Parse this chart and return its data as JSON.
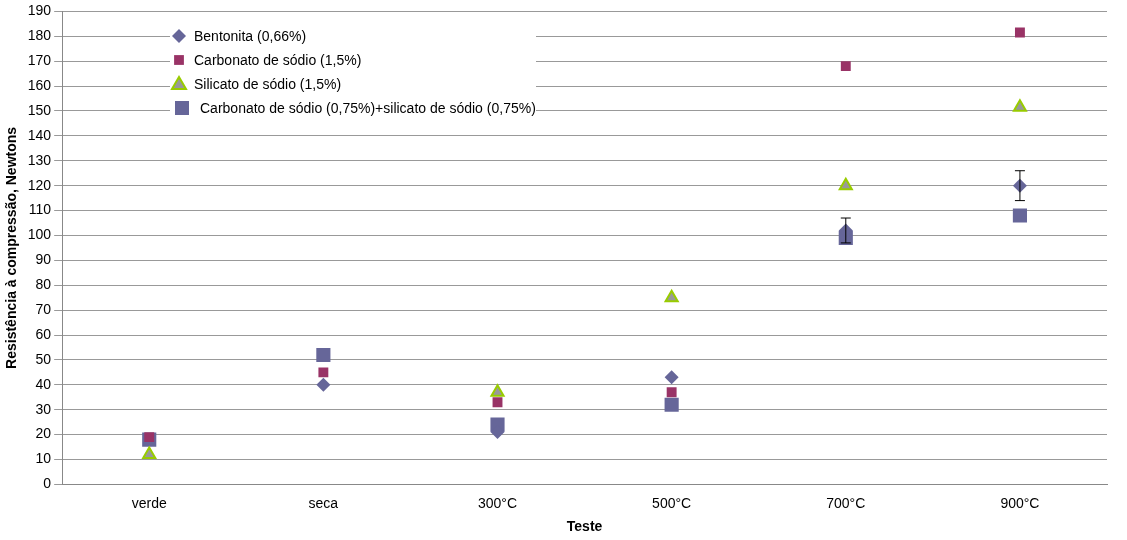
{
  "chart_data": {
    "type": "scatter",
    "xlabel": "Teste",
    "ylabel": "Resistência à compressão, Newtons",
    "categories": [
      "verde",
      "seca",
      "300°C",
      "500°C",
      "700°C",
      "900°C"
    ],
    "series": [
      {
        "name": "Bentonita (0,66%)",
        "color": "#666699",
        "marker": "diamond",
        "values": [
          null,
          40,
          21,
          43,
          102,
          120
        ],
        "errors": [
          null,
          null,
          null,
          null,
          5,
          6
        ]
      },
      {
        "name": "Carbonato de sódio (1,5%)",
        "color": "#993366",
        "marker": "square",
        "values": [
          19,
          45,
          33,
          37,
          168,
          181.5
        ]
      },
      {
        "name": "Silicato de sódio (1,5%)",
        "color": "#999999",
        "marker": "triangle",
        "values": [
          12,
          null,
          37,
          75,
          120,
          151.5
        ]
      },
      {
        "name": "Carbonato de sódio (0,75%)+silicato de sódio (0,75%)",
        "color": "#666699",
        "marker": "square",
        "values": [
          18,
          52,
          24,
          32,
          99,
          108
        ]
      }
    ],
    "ylim": [
      0,
      190
    ],
    "yticks": [
      0,
      10,
      20,
      30,
      40,
      50,
      60,
      70,
      80,
      90,
      100,
      110,
      120,
      130,
      140,
      150,
      160,
      170,
      180,
      190
    ],
    "grid": "y",
    "legend": "top left"
  }
}
